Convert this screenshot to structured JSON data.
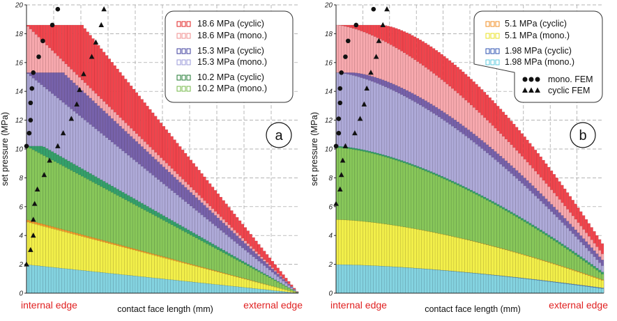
{
  "chart_data": [
    {
      "type": "bar",
      "panel_label": "a",
      "xlabel": "contact face length (mm)",
      "ylabel": "set pressure (MPa)",
      "x_left_label": "internal edge",
      "x_right_label": "external edge",
      "ylim": [
        0,
        20
      ],
      "yticks": [
        0,
        2,
        4,
        6,
        8,
        10,
        12,
        14,
        16,
        18,
        20
      ],
      "grid": true,
      "legend_position": "top-right",
      "series": [
        {
          "name": "18.6 MPa (cyclic)",
          "color": "#f0444c",
          "plateau": 18.6,
          "plateau_end": 0.205,
          "curve": "linear",
          "start": 18.6
        },
        {
          "name": "18.6 MPa (mono.)",
          "color": "#f7a9ae",
          "plateau": 18.6,
          "plateau_end": 0.0,
          "curve": "linear",
          "start": 18.6
        },
        {
          "name": "15.3 MPa (cyclic)",
          "color": "#7762ab",
          "plateau": 15.3,
          "plateau_end": 0.135,
          "curve": "linear",
          "start": 15.3
        },
        {
          "name": "15.3 MPa (mono.)",
          "color": "#aeaad8",
          "plateau": 15.3,
          "plateau_end": 0.0,
          "curve": "linear",
          "start": 15.3
        },
        {
          "name": "10.2 MPa (cyclic)",
          "color": "#35a06a",
          "plateau": 10.2,
          "plateau_end": 0.06,
          "curve": "linear",
          "start": 10.2
        },
        {
          "name": "10.2 MPa (mono.)",
          "color": "#88c75a",
          "plateau": 10.2,
          "plateau_end": 0.0,
          "curve": "linear",
          "start": 10.2
        },
        {
          "name": "5.1 MPa (cyclic)",
          "color": "#f39a2c",
          "plateau": 5.1,
          "plateau_end": 0.0,
          "curve": "linear",
          "start": 5.1
        },
        {
          "name": "5.1 MPa (mono.)",
          "color": "#f2ef4a",
          "plateau": 5.1,
          "plateau_end": 0.0,
          "curve": "linear",
          "start": 4.95
        },
        {
          "name": "1.98 MPa (cyclic)",
          "color": "#4a78c8",
          "plateau": 1.98,
          "plateau_end": 0.0,
          "curve": "linear",
          "start": 1.98
        },
        {
          "name": "1.98 MPa (mono.)",
          "color": "#84d3e0",
          "plateau": 1.98,
          "plateau_end": 0.0,
          "curve": "linear",
          "start": 1.98
        }
      ],
      "legend": [
        {
          "label": "18.6 MPa (cyclic)",
          "color": "#e02020"
        },
        {
          "label": "18.6 MPa (mono.)",
          "color": "#f08c8c"
        },
        {
          "label": "15.3 MPa (cyclic)",
          "color": "#3c3c9c"
        },
        {
          "label": "15.3 MPa (mono.)",
          "color": "#9a9ad8"
        },
        {
          "label": "10.2 MPa (cyclic)",
          "color": "#1f7a30"
        },
        {
          "label": "10.2 MPa (mono.)",
          "color": "#74b84a"
        }
      ],
      "mono_fem": [
        [
          0.0,
          10.2
        ],
        [
          0.01,
          11.1
        ],
        [
          0.015,
          12.0
        ],
        [
          0.015,
          13.2
        ],
        [
          0.02,
          14.2
        ],
        [
          0.025,
          15.3
        ],
        [
          0.045,
          16.4
        ],
        [
          0.06,
          17.5
        ],
        [
          0.095,
          18.6
        ],
        [
          0.115,
          19.7
        ]
      ],
      "cyclic_fem": [
        [
          0.0,
          2.0
        ],
        [
          0.015,
          3.0
        ],
        [
          0.025,
          4.0
        ],
        [
          0.025,
          5.1
        ],
        [
          0.03,
          6.2
        ],
        [
          0.04,
          7.2
        ],
        [
          0.065,
          8.2
        ],
        [
          0.085,
          9.2
        ],
        [
          0.115,
          10.2
        ],
        [
          0.135,
          11.1
        ],
        [
          0.165,
          12.1
        ],
        [
          0.185,
          13.1
        ],
        [
          0.195,
          14.1
        ],
        [
          0.21,
          15.2
        ],
        [
          0.24,
          16.4
        ],
        [
          0.255,
          17.4
        ],
        [
          0.275,
          18.6
        ],
        [
          0.285,
          19.7
        ]
      ]
    },
    {
      "type": "bar",
      "panel_label": "b",
      "xlabel": "contact face length (mm)",
      "ylabel": "set pressure (MPa)",
      "x_left_label": "internal edge",
      "x_right_label": "external edge",
      "ylim": [
        0,
        20
      ],
      "yticks": [
        0,
        2,
        4,
        6,
        8,
        10,
        12,
        14,
        16,
        18,
        20
      ],
      "grid": true,
      "legend_position": "top-left",
      "series": [
        {
          "name": "18.6 MPa (cyclic)",
          "color": "#f0444c",
          "plateau": 18.6,
          "plateau_end": 0.17,
          "curve": "concave",
          "start": 18.6,
          "end": 3.3
        },
        {
          "name": "18.6 MPa (mono.)",
          "color": "#f7a9ae",
          "plateau": 18.6,
          "plateau_end": 0.0,
          "curve": "concave",
          "start": 18.6,
          "end": 2.6
        },
        {
          "name": "15.3 MPa (cyclic)",
          "color": "#7762ab",
          "plateau": 15.3,
          "plateau_end": 0.06,
          "curve": "concave",
          "start": 15.3,
          "end": 2.2
        },
        {
          "name": "15.3 MPa (mono.)",
          "color": "#aeaad8",
          "plateau": 15.3,
          "plateau_end": 0.0,
          "curve": "concave",
          "start": 15.3,
          "end": 1.8
        },
        {
          "name": "10.2 MPa (cyclic)",
          "color": "#35a06a",
          "plateau": 10.2,
          "plateau_end": 0.0,
          "curve": "concave",
          "start": 10.2,
          "end": 1.4
        },
        {
          "name": "10.2 MPa (mono.)",
          "color": "#88c75a",
          "plateau": 10.2,
          "plateau_end": 0.0,
          "curve": "concave",
          "start": 10.1,
          "end": 1.25
        },
        {
          "name": "5.1 MPa (cyclic)",
          "color": "#f39a2c",
          "plateau": 5.1,
          "plateau_end": 0.0,
          "curve": "concave",
          "start": 5.1,
          "end": 0.9
        },
        {
          "name": "5.1 MPa (mono.)",
          "color": "#f2ef4a",
          "plateau": 5.1,
          "plateau_end": 0.0,
          "curve": "concave",
          "start": 5.1,
          "end": 0.85
        },
        {
          "name": "1.98 MPa (cyclic)",
          "color": "#4a78c8",
          "plateau": 1.98,
          "plateau_end": 0.0,
          "curve": "concave",
          "start": 1.98,
          "end": 0.35
        },
        {
          "name": "1.98 MPa (mono.)",
          "color": "#84d3e0",
          "plateau": 1.98,
          "plateau_end": 0.0,
          "curve": "concave",
          "start": 1.98,
          "end": 0.3
        }
      ],
      "legend": [
        {
          "label": "5.1 MPa (cyclic)",
          "color": "#f08c20"
        },
        {
          "label": "5.1 MPa (mono.)",
          "color": "#e8e020"
        },
        {
          "label": "1.98 MPa (cyclic)",
          "color": "#2c50b0"
        },
        {
          "label": "1.98 MPa (mono.)",
          "color": "#5cc8dc"
        }
      ],
      "legend_markers": {
        "mono": "mono. FEM",
        "cyclic": "cyclic FEM"
      },
      "mono_fem": [
        [
          0.0,
          10.2
        ],
        [
          0.01,
          11.1
        ],
        [
          0.01,
          12.1
        ],
        [
          0.015,
          13.2
        ],
        [
          0.015,
          14.2
        ],
        [
          0.02,
          15.3
        ],
        [
          0.035,
          16.4
        ],
        [
          0.045,
          17.5
        ],
        [
          0.075,
          18.6
        ],
        [
          0.14,
          19.7
        ]
      ],
      "cyclic_fem": [
        [
          0.0,
          6.2
        ],
        [
          0.015,
          7.2
        ],
        [
          0.02,
          8.2
        ],
        [
          0.025,
          9.2
        ],
        [
          0.035,
          10.2
        ],
        [
          0.07,
          11.1
        ],
        [
          0.09,
          12.1
        ],
        [
          0.105,
          13.1
        ],
        [
          0.115,
          14.2
        ],
        [
          0.13,
          15.3
        ],
        [
          0.15,
          16.4
        ],
        [
          0.16,
          17.5
        ],
        [
          0.175,
          18.6
        ],
        [
          0.19,
          19.7
        ]
      ]
    }
  ]
}
